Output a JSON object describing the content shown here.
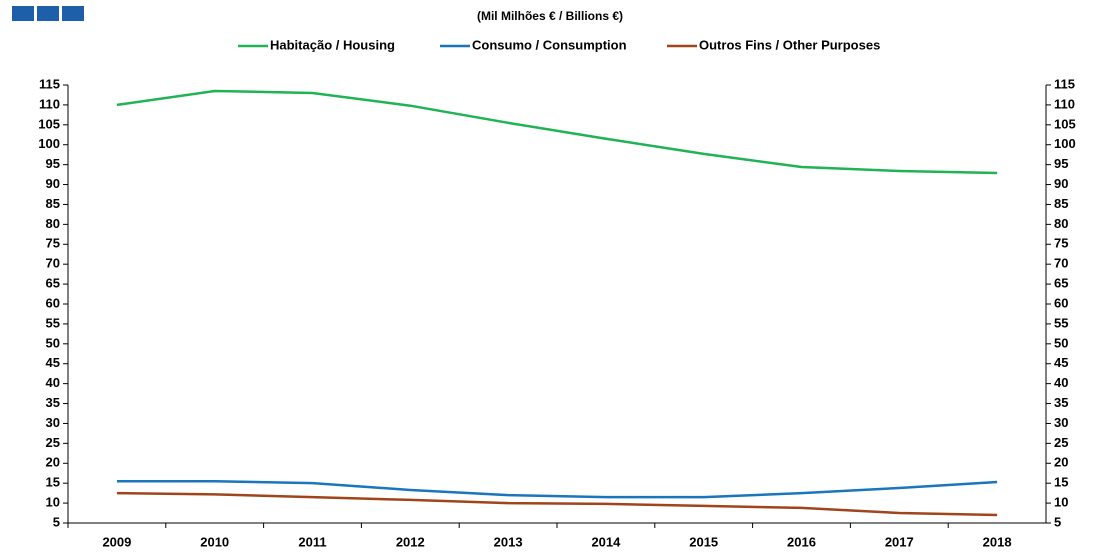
{
  "chart_data": {
    "type": "line",
    "subtitle": "(Mil Milhões € / Billions €)",
    "categories": [
      "2009",
      "2010",
      "2011",
      "2012",
      "2013",
      "2014",
      "2015",
      "2016",
      "2017",
      "2018"
    ],
    "series": [
      {
        "name": "Habitação / Housing",
        "color": "#1fb356",
        "values": [
          110,
          113.5,
          113,
          109.8,
          105.5,
          101.5,
          97.7,
          94.4,
          93.4,
          92.9
        ]
      },
      {
        "name": "Consumo / Consumption",
        "color": "#1a75bb",
        "values": [
          15.5,
          15.5,
          15,
          13.3,
          12,
          11.5,
          11.5,
          12.5,
          13.8,
          15.3
        ]
      },
      {
        "name": "Outros Fins / Other Purposes",
        "color": "#a0441b",
        "values": [
          12.5,
          12.2,
          11.5,
          10.8,
          10,
          9.8,
          9.3,
          8.8,
          7.5,
          7
        ]
      }
    ],
    "ylim": [
      5,
      115
    ],
    "yticks": [
      5,
      10,
      15,
      20,
      25,
      30,
      35,
      40,
      45,
      50,
      55,
      60,
      65,
      70,
      75,
      80,
      85,
      90,
      95,
      100,
      105,
      110,
      115
    ],
    "grid": false,
    "legend": "top"
  }
}
